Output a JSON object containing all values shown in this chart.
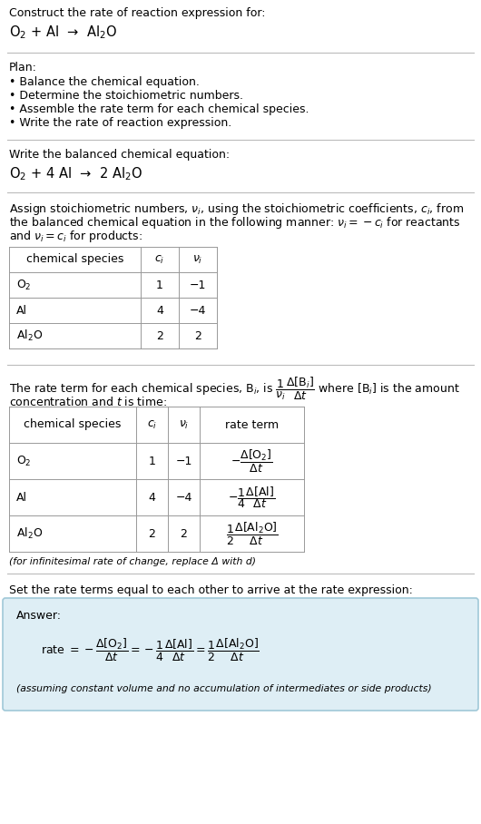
{
  "bg_color": "#ffffff",
  "text_color": "#000000",
  "answer_bg_color": "#deeef5",
  "answer_border_color": "#a0c8d8",
  "title_text": "Construct the rate of reaction expression for:",
  "reaction_unbalanced": "O$_2$ + Al  →  Al$_2$O",
  "plan_header": "Plan:",
  "plan_items": [
    "• Balance the chemical equation.",
    "• Determine the stoichiometric numbers.",
    "• Assemble the rate term for each chemical species.",
    "• Write the rate of reaction expression."
  ],
  "balanced_header": "Write the balanced chemical equation:",
  "reaction_balanced": "O$_2$ + 4 Al  →  2 Al$_2$O",
  "assign_text_lines": [
    "Assign stoichiometric numbers, $\\nu_i$, using the stoichiometric coefficients, $c_i$, from",
    "the balanced chemical equation in the following manner: $\\nu_i = -c_i$ for reactants",
    "and $\\nu_i = c_i$ for products:"
  ],
  "table1_headers": [
    "chemical species",
    "$c_i$",
    "$\\nu_i$"
  ],
  "table1_rows": [
    [
      "O$_2$",
      "1",
      "−1"
    ],
    [
      "Al",
      "4",
      "−4"
    ],
    [
      "Al$_2$O",
      "2",
      "2"
    ]
  ],
  "rate_intro_line1": "The rate term for each chemical species, B$_i$, is $\\dfrac{1}{\\nu_i}\\dfrac{\\Delta[\\mathrm{B}_i]}{\\Delta t}$ where [B$_i$] is the amount",
  "rate_intro_line2": "concentration and $t$ is time:",
  "table2_headers": [
    "chemical species",
    "$c_i$",
    "$\\nu_i$",
    "rate term"
  ],
  "table2_rows": [
    [
      "O$_2$",
      "1",
      "−1",
      "$-\\dfrac{\\Delta[\\mathrm{O_2}]}{\\Delta t}$"
    ],
    [
      "Al",
      "4",
      "−4",
      "$-\\dfrac{1}{4}\\dfrac{\\Delta[\\mathrm{Al}]}{\\Delta t}$"
    ],
    [
      "Al$_2$O",
      "2",
      "2",
      "$\\dfrac{1}{2}\\dfrac{\\Delta[\\mathrm{Al_2O}]}{\\Delta t}$"
    ]
  ],
  "infinitesimal_note": "(for infinitesimal rate of change, replace Δ with d)",
  "set_equal_text": "Set the rate terms equal to each other to arrive at the rate expression:",
  "answer_label": "Answer:",
  "answer_eq": "rate $= -\\dfrac{\\Delta[\\mathrm{O_2}]}{\\Delta t} = -\\dfrac{1}{4}\\dfrac{\\Delta[\\mathrm{Al}]}{\\Delta t} = \\dfrac{1}{2}\\dfrac{\\Delta[\\mathrm{Al_2O}]}{\\Delta t}$",
  "answer_note": "(assuming constant volume and no accumulation of intermediates or side products)",
  "hline_color": "#bbbbbb",
  "table_line_color": "#999999"
}
